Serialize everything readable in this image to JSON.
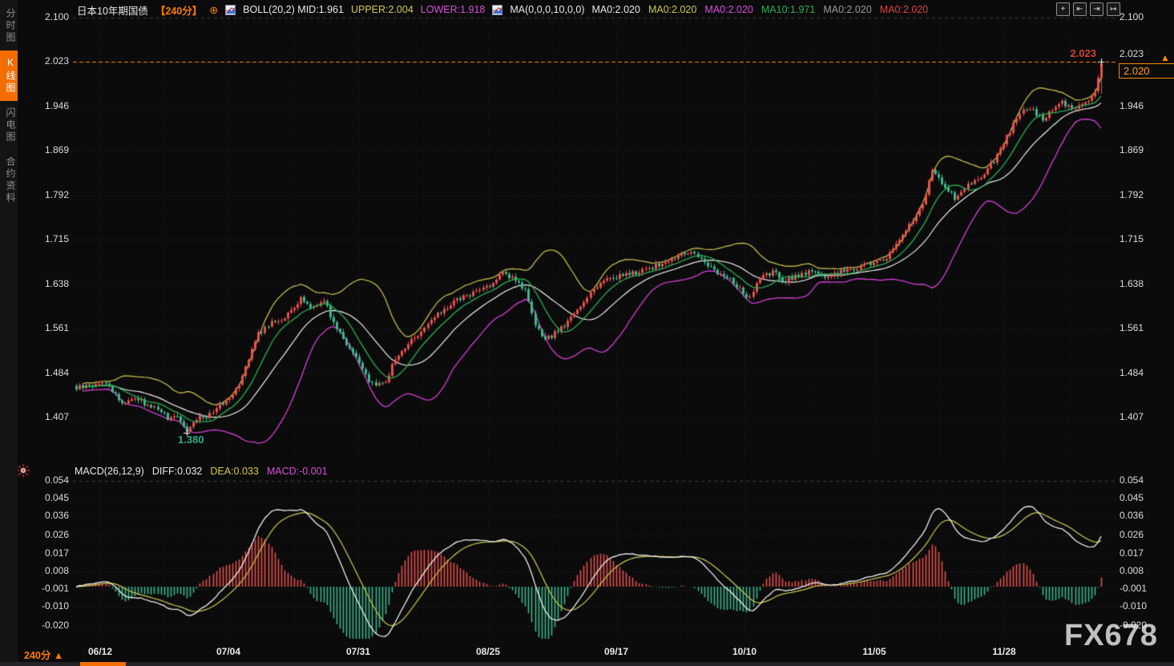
{
  "window": {
    "title": "日本10年期国债",
    "bg": "#0b0b0c"
  },
  "sidebar": {
    "items": [
      {
        "label": "分时图",
        "active": false
      },
      {
        "label": "K线图",
        "active": true
      },
      {
        "label": "闪电图",
        "active": false
      },
      {
        "label": "合约资料",
        "active": false
      }
    ]
  },
  "header": {
    "title": "日本10年期国债",
    "period_tag": "【240分】",
    "expand_icon": "⊕",
    "boll": {
      "name": "BOLL(20,2)",
      "mid": "MID:1.961",
      "upper": "UPPER:2.004",
      "lower": "LOWER:1.918"
    },
    "ma_name": "MA(0,0,0,10,0,0)",
    "ma_items": [
      {
        "label": "MA0:2.020",
        "class": "h-white"
      },
      {
        "label": "MA0:2.020",
        "class": "h-yellow"
      },
      {
        "label": "MA0:2.020",
        "class": "h-magenta"
      },
      {
        "label": "MA10:1.971",
        "class": "h-green"
      },
      {
        "label": "MA0:2.020",
        "class": "h-gray"
      },
      {
        "label": "MA0:2.020",
        "class": "h-red"
      }
    ],
    "icons": [
      {
        "name": "move-crosshair-icon",
        "glyph": "+"
      },
      {
        "name": "pan-start-icon",
        "glyph": "⇤"
      },
      {
        "name": "pan-end-icon",
        "glyph": "⇥"
      },
      {
        "name": "step-forward-icon",
        "glyph": "↦"
      }
    ]
  },
  "macd_header": {
    "name": "MACD(26,12,9)",
    "diff": "DIFF:0.032",
    "dea": "DEA:0.033",
    "macd": "MACD:-0.001"
  },
  "price_axis": {
    "labels": [
      "2.100",
      "2.023",
      "1.946",
      "1.869",
      "1.792",
      "1.715",
      "1.638",
      "1.561",
      "1.484",
      "1.407"
    ]
  },
  "macd_axis": {
    "labels": [
      "0.054",
      "0.045",
      "0.036",
      "0.026",
      "0.017",
      "0.008",
      "-0.001",
      "-0.010",
      "-0.020"
    ]
  },
  "x_axis": {
    "labels": [
      "06/12",
      "07/04",
      "07/31",
      "08/25",
      "09/17",
      "10/10",
      "11/05",
      "11/28"
    ],
    "positions": [
      125,
      285,
      447,
      609,
      769,
      929,
      1091,
      1253
    ]
  },
  "annotations": {
    "high_label": "2.023",
    "low_label": "1.380",
    "last_price": "2.020",
    "latest_arrow": "▲"
  },
  "footer": {
    "period": "240分",
    "period_arrow": "▲",
    "watermark": "FX678"
  },
  "chart_data": {
    "type": "candlestick+macd",
    "instrument": "日本10年期国债",
    "period": "240分",
    "candles_n": 316,
    "price_axis_values": [
      2.1,
      2.023,
      1.946,
      1.869,
      1.792,
      1.715,
      1.638,
      1.561,
      1.484,
      1.407
    ],
    "macd_axis_values": [
      0.054,
      0.045,
      0.036,
      0.026,
      0.017,
      0.008,
      -0.001,
      -0.01,
      -0.02
    ],
    "close_anchors": [
      [
        0,
        1.458
      ],
      [
        9,
        1.468
      ],
      [
        14,
        1.432
      ],
      [
        18,
        1.442
      ],
      [
        22,
        1.428
      ],
      [
        26,
        1.42
      ],
      [
        28,
        1.404
      ],
      [
        31,
        1.408
      ],
      [
        33,
        1.392
      ],
      [
        34,
        1.382
      ],
      [
        36,
        1.398
      ],
      [
        38,
        1.412
      ],
      [
        40,
        1.408
      ],
      [
        43,
        1.425
      ],
      [
        47,
        1.442
      ],
      [
        50,
        1.468
      ],
      [
        53,
        1.512
      ],
      [
        56,
        1.552
      ],
      [
        59,
        1.568
      ],
      [
        63,
        1.578
      ],
      [
        66,
        1.59
      ],
      [
        69,
        1.612
      ],
      [
        73,
        1.598
      ],
      [
        76,
        1.612
      ],
      [
        79,
        1.572
      ],
      [
        82,
        1.545
      ],
      [
        86,
        1.51
      ],
      [
        89,
        1.478
      ],
      [
        92,
        1.462
      ],
      [
        95,
        1.472
      ],
      [
        98,
        1.508
      ],
      [
        103,
        1.542
      ],
      [
        107,
        1.562
      ],
      [
        111,
        1.585
      ],
      [
        116,
        1.608
      ],
      [
        120,
        1.618
      ],
      [
        124,
        1.628
      ],
      [
        128,
        1.642
      ],
      [
        131,
        1.655
      ],
      [
        135,
        1.648
      ],
      [
        138,
        1.625
      ],
      [
        141,
        1.565
      ],
      [
        144,
        1.54
      ],
      [
        148,
        1.558
      ],
      [
        151,
        1.572
      ],
      [
        155,
        1.6
      ],
      [
        159,
        1.632
      ],
      [
        163,
        1.648
      ],
      [
        167,
        1.652
      ],
      [
        172,
        1.658
      ],
      [
        177,
        1.668
      ],
      [
        183,
        1.68
      ],
      [
        188,
        1.695
      ],
      [
        192,
        1.682
      ],
      [
        196,
        1.662
      ],
      [
        201,
        1.648
      ],
      [
        204,
        1.628
      ],
      [
        207,
        1.612
      ],
      [
        210,
        1.648
      ],
      [
        214,
        1.658
      ],
      [
        218,
        1.644
      ],
      [
        222,
        1.654
      ],
      [
        227,
        1.662
      ],
      [
        231,
        1.648
      ],
      [
        235,
        1.66
      ],
      [
        240,
        1.668
      ],
      [
        244,
        1.672
      ],
      [
        249,
        1.685
      ],
      [
        253,
        1.715
      ],
      [
        257,
        1.748
      ],
      [
        260,
        1.775
      ],
      [
        263,
        1.838
      ],
      [
        265,
        1.82
      ],
      [
        268,
        1.802
      ],
      [
        270,
        1.788
      ],
      [
        273,
        1.805
      ],
      [
        277,
        1.818
      ],
      [
        280,
        1.838
      ],
      [
        283,
        1.86
      ],
      [
        286,
        1.892
      ],
      [
        289,
        1.928
      ],
      [
        292,
        1.944
      ],
      [
        295,
        1.934
      ],
      [
        297,
        1.922
      ],
      [
        300,
        1.94
      ],
      [
        303,
        1.952
      ],
      [
        306,
        1.942
      ],
      [
        309,
        1.95
      ],
      [
        311,
        1.956
      ],
      [
        313,
        1.972
      ],
      [
        314,
        1.996
      ],
      [
        315,
        2.02
      ]
    ],
    "global_low": {
      "index": 34,
      "value": 1.38
    },
    "global_high": {
      "index": 315,
      "value": 2.023
    },
    "last_close": 2.02,
    "indicators": {
      "boll": {
        "period": 20,
        "k": 2,
        "mid": 1.961,
        "upper": 2.004,
        "lower": 1.918
      },
      "ma10_last": 1.971,
      "macd": {
        "fast": 12,
        "slow": 26,
        "signal": 9,
        "diff": 0.032,
        "dea": 0.033,
        "hist": -0.001
      }
    },
    "colors": {
      "up": "#e8514c",
      "down": "#3cb98c",
      "boll_upper": "#cfc94f",
      "boll_mid": "#ffffff",
      "boll_lower": "#d63fd6",
      "ma10": "#2fae54",
      "diff_line": "#ffffff",
      "dea_line": "#cfc94f",
      "hist_pos": "#e8514c",
      "hist_neg": "#3cb98c",
      "grid": "#2c2c2c",
      "high_line": "#ff8a00"
    }
  }
}
